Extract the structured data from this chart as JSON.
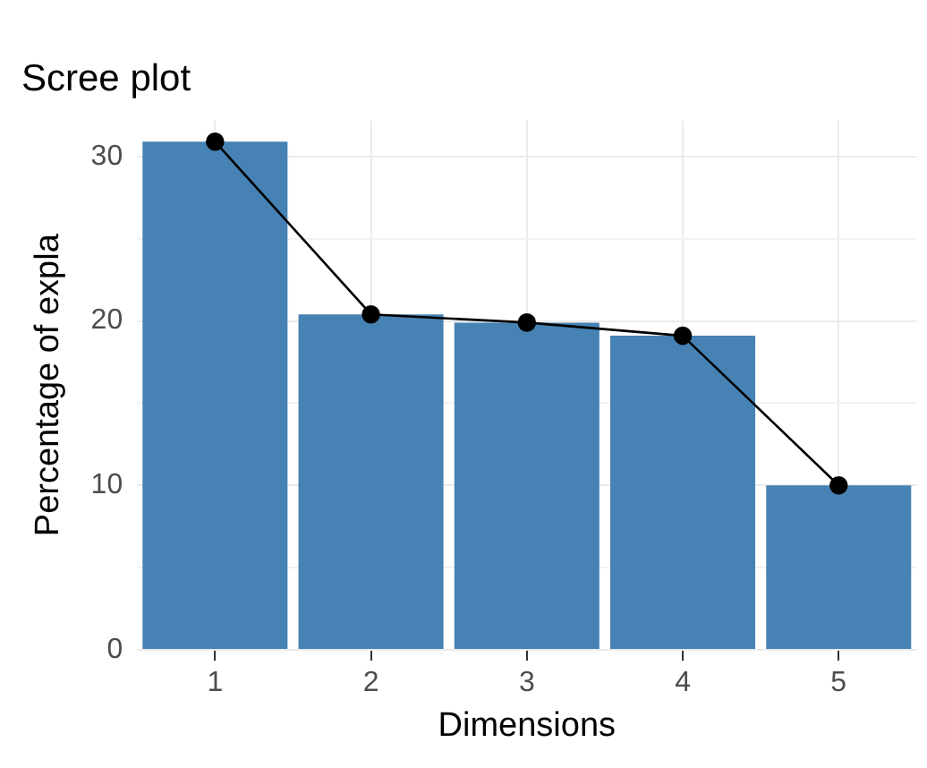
{
  "chart_data": {
    "type": "bar",
    "title": "Scree plot",
    "xlabel": "Dimensions",
    "ylabel": "Percentage of expla",
    "categories": [
      "1",
      "2",
      "3",
      "4",
      "5"
    ],
    "series": [
      {
        "color": "#4682b4",
        "values": [
          30.9,
          20.4,
          19.9,
          19.1,
          10.0
        ]
      },
      {
        "type": "line",
        "color": "#000000",
        "values": [
          30.9,
          20.4,
          19.9,
          19.1,
          10.0
        ],
        "marker": "circle",
        "line_style": "solid"
      }
    ],
    "ylim": [
      0,
      32.2
    ],
    "yticks": [
      0,
      {
        "value": 5,
        "label": null
      },
      10,
      {
        "value": 15,
        "label": null
      },
      20,
      {
        "value": 25,
        "label": null
      },
      30
    ],
    "grid": true,
    "legend": false
  }
}
